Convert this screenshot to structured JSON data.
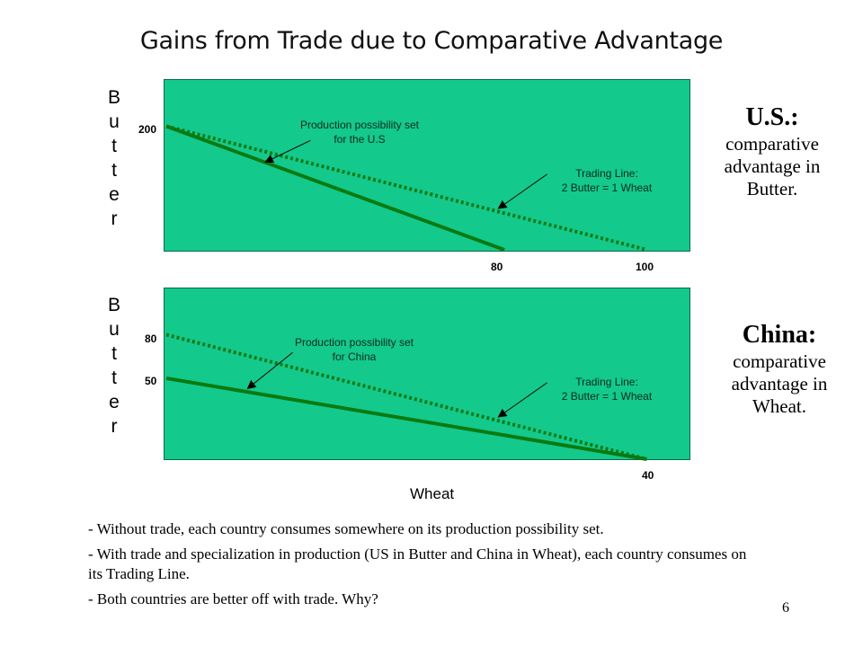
{
  "title": "Gains from Trade due to Comparative Advantage",
  "colors": {
    "panel": "#13c98c",
    "ppf_line": "#0a7a10",
    "trade_line": "#0a7a10",
    "arrow": "#000000"
  },
  "top_chart": {
    "y_label": "Butter",
    "y_ticks": [
      "200"
    ],
    "x_ticks": [
      "80",
      "100"
    ],
    "ppf_note": [
      "Production possibility set",
      "for the U.S"
    ],
    "trade_note": [
      "Trading Line:",
      "2 Butter = 1 Wheat"
    ],
    "side_head": "U.S.:",
    "side_body": [
      "comparative",
      "advantage in",
      "Butter."
    ]
  },
  "bottom_chart": {
    "y_label": "Butter",
    "y_ticks": [
      "80",
      "50"
    ],
    "x_ticks": [
      "40"
    ],
    "x_label": "Wheat",
    "ppf_note": [
      "Production possibility set",
      "for China"
    ],
    "trade_note": [
      "Trading Line:",
      "2 Butter = 1 Wheat"
    ],
    "side_head": "China:",
    "side_body": [
      "comparative",
      "advantage in",
      "Wheat."
    ]
  },
  "bullets": [
    "- Without trade, each country consumes somewhere on its production possibility set.",
    "- With trade and specialization in production (US in Butter and China in Wheat), each country consumes on its Trading Line.",
    "- Both countries are better off with trade. Why?"
  ],
  "page_number": "6"
}
